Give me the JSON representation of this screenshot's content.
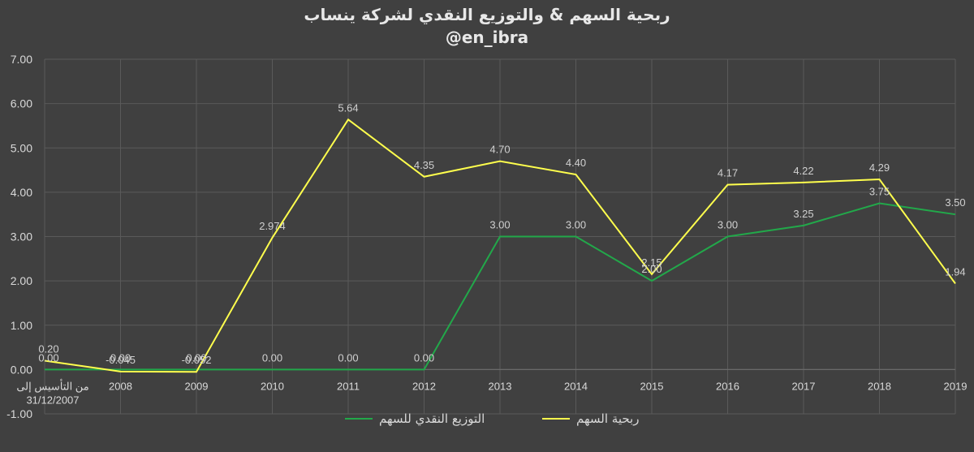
{
  "title_line1": "ربحية السهم & والتوزيع النقدي لشركة ينساب",
  "title_line2": "@en_ibra",
  "colors": {
    "background": "#404040",
    "grid": "#5a5a5a",
    "eps": "#ffff4d",
    "dividend": "#22a84a",
    "text": "#d9d9d9"
  },
  "chart_data": {
    "type": "line",
    "title": "ربحية السهم & والتوزيع النقدي لشركة ينساب",
    "subtitle": "@en_ibra",
    "categories": [
      "من التأسيس إلى 31/12/2007",
      "2008",
      "2009",
      "2010",
      "2011",
      "2012",
      "2013",
      "2014",
      "2015",
      "2016",
      "2017",
      "2018",
      "2019"
    ],
    "yticks": [
      "7.00",
      "6.00",
      "5.00",
      "4.00",
      "3.00",
      "2.00",
      "1.00",
      "0.00",
      "-1.00"
    ],
    "ylim": [
      -1,
      7
    ],
    "grid": true,
    "legend_position": "bottom",
    "series": [
      {
        "name": "ربحية السهم",
        "values": [
          0.2,
          -0.045,
          -0.052,
          2.974,
          5.64,
          4.35,
          4.7,
          4.4,
          2.15,
          4.17,
          4.22,
          4.29,
          1.94
        ],
        "labels": [
          "0.20",
          "-0.045",
          "-0.052",
          "2.974",
          "5.64",
          "4.35",
          "4.70",
          "4.40",
          "2.15",
          "4.17",
          "4.22",
          "4.29",
          "1.94"
        ]
      },
      {
        "name": "التوزيع النقدي للسهم",
        "values": [
          0,
          0,
          0,
          0,
          0,
          0,
          3.0,
          3.0,
          2.0,
          3.0,
          3.25,
          3.75,
          3.5
        ],
        "labels": [
          "0.00",
          "0.00",
          "0.00",
          "0.00",
          "0.00",
          "0.00",
          "3.00",
          "3.00",
          "2.00",
          "3.00",
          "3.25",
          "3.75",
          "3.50"
        ]
      }
    ]
  }
}
